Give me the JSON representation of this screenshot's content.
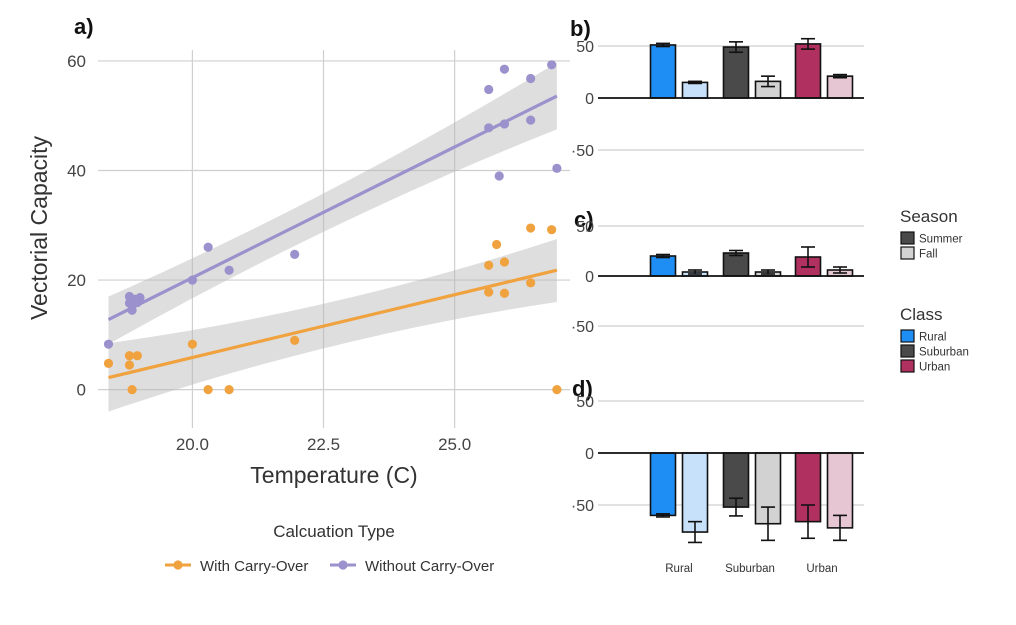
{
  "chart_data": [
    {
      "panel": "a)",
      "type": "scatter",
      "xlabel": "Temperature (C)",
      "ylabel": "Vectorial Capacity",
      "xlim": [
        18.2,
        27.2
      ],
      "ylim": [
        -7,
        62
      ],
      "xticks": [
        "20.0",
        "22.5",
        "25.0"
      ],
      "yticks": [
        "0",
        "20",
        "40",
        "60"
      ],
      "grid": true,
      "legend_position": "bottom",
      "legend_title": "Calcuation Type",
      "series": [
        {
          "name": "With Carry-Over",
          "color": "#f0a23f",
          "points": [
            [
              18.4,
              4.8
            ],
            [
              18.8,
              6.2
            ],
            [
              18.8,
              4.5
            ],
            [
              18.85,
              0
            ],
            [
              18.95,
              6.2
            ],
            [
              20.0,
              8.3
            ],
            [
              20.3,
              0
            ],
            [
              20.7,
              0
            ],
            [
              21.95,
              9.0
            ],
            [
              25.65,
              22.7
            ],
            [
              25.65,
              17.8
            ],
            [
              25.8,
              26.5
            ],
            [
              25.95,
              23.3
            ],
            [
              25.95,
              17.6
            ],
            [
              26.45,
              29.5
            ],
            [
              26.45,
              19.5
            ],
            [
              26.85,
              29.2
            ],
            [
              26.95,
              0
            ]
          ],
          "fit": {
            "x": [
              18.4,
              26.95
            ],
            "y": [
              2.2,
              21.8
            ],
            "ci_lower_ends": [
              -4,
              16
            ],
            "ci_upper_ends": [
              8.5,
              27.5
            ]
          }
        },
        {
          "name": "Without Carry-Over",
          "color": "#9b91cc",
          "points": [
            [
              18.4,
              8.3
            ],
            [
              18.8,
              17.0
            ],
            [
              18.8,
              15.8
            ],
            [
              18.85,
              14.5
            ],
            [
              18.9,
              16.5
            ],
            [
              19.0,
              16.8
            ],
            [
              18.95,
              15.9
            ],
            [
              20.0,
              20.0
            ],
            [
              20.3,
              26.0
            ],
            [
              20.7,
              21.8
            ],
            [
              21.95,
              24.7
            ],
            [
              25.65,
              54.8
            ],
            [
              25.65,
              47.8
            ],
            [
              25.85,
              39.0
            ],
            [
              25.95,
              58.5
            ],
            [
              25.95,
              48.5
            ],
            [
              26.45,
              56.8
            ],
            [
              26.45,
              49.2
            ],
            [
              26.85,
              59.3
            ],
            [
              26.95,
              40.4
            ]
          ],
          "fit": {
            "x": [
              18.4,
              26.95
            ],
            "y": [
              12.8,
              53.6
            ],
            "ci_lower_ends": [
              8.3,
              47.5
            ],
            "ci_upper_ends": [
              17,
              59.7
            ]
          }
        }
      ]
    },
    {
      "panel": "b)",
      "type": "bar",
      "ylim": [
        -60,
        60
      ],
      "yticks": [
        "50",
        "0",
        "·50"
      ],
      "categories": [
        "Rural",
        "Suburban",
        "Urban"
      ],
      "series": [
        {
          "name": "Summer",
          "values": [
            51,
            49,
            52
          ],
          "errors": [
            1.5,
            5,
            5
          ]
        },
        {
          "name": "Fall",
          "values": [
            15,
            16,
            21
          ],
          "errors": [
            1,
            5,
            1.5
          ]
        }
      ]
    },
    {
      "panel": "c)",
      "type": "bar",
      "ylim": [
        -60,
        60
      ],
      "yticks": [
        "50",
        "0",
        "·50"
      ],
      "categories": [
        "Rural",
        "Suburban",
        "Urban"
      ],
      "series": [
        {
          "name": "Summer",
          "values": [
            20,
            23,
            19
          ],
          "errors": [
            1.5,
            2.5,
            10
          ]
        },
        {
          "name": "Fall",
          "values": [
            4,
            4,
            6
          ],
          "errors": [
            2,
            2,
            3
          ]
        }
      ]
    },
    {
      "panel": "d)",
      "type": "bar",
      "ylim": [
        -85,
        60
      ],
      "yticks": [
        "50",
        "0",
        "·50"
      ],
      "categories": [
        "Rural",
        "Suburban",
        "Urban"
      ],
      "series": [
        {
          "name": "Summer",
          "values": [
            -60,
            -52,
            -66
          ],
          "errors": [
            1.5,
            8.5,
            16
          ]
        },
        {
          "name": "Fall",
          "values": [
            -76,
            -68,
            -72
          ],
          "errors": [
            10,
            16,
            12
          ]
        }
      ]
    }
  ],
  "season_legend": {
    "title": "Season",
    "items": [
      "Summer",
      "Fall"
    ]
  },
  "class_legend": {
    "title": "Class",
    "items": [
      "Rural",
      "Suburban",
      "Urban"
    ]
  },
  "colors": {
    "Rural": {
      "Summer": "#1e8ef4",
      "Fall": "#c8e1fb"
    },
    "Suburban": {
      "Summer": "#4a4a4a",
      "Fall": "#d2d2d2"
    },
    "Urban": {
      "Summer": "#b03060",
      "Fall": "#e6c6d2"
    }
  }
}
